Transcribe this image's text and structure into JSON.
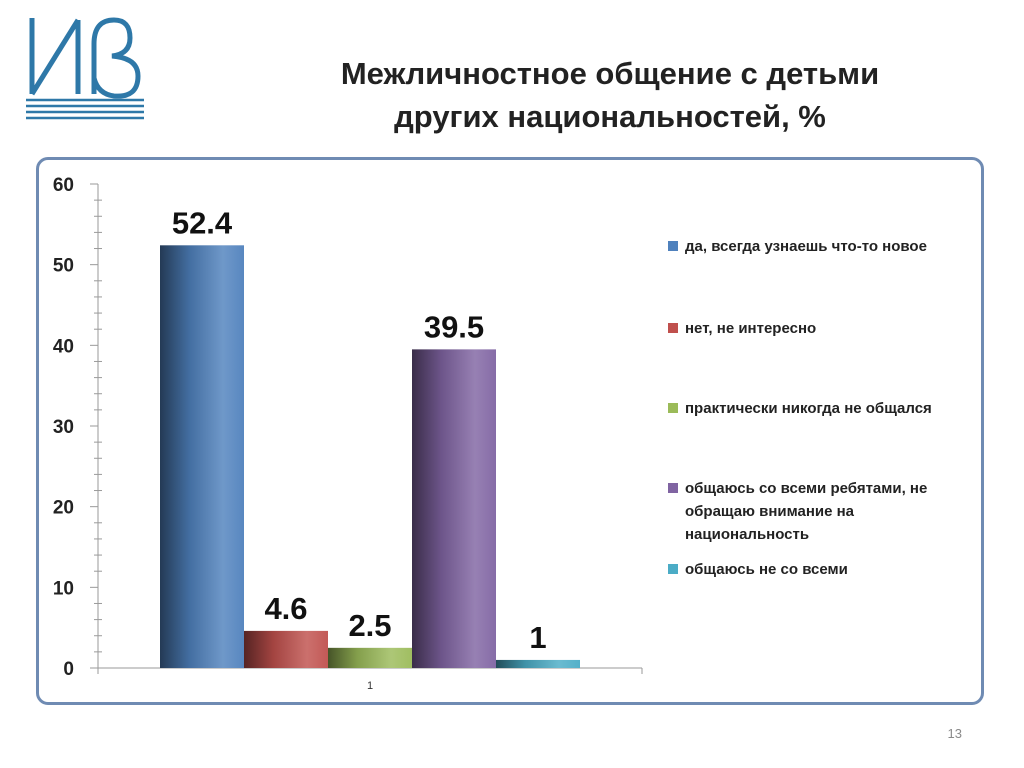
{
  "slide": {
    "title_lines": [
      "Межличностное общение с детьми",
      "других национальностей, %"
    ],
    "page_number": "13",
    "brand_color": "#2e78a8"
  },
  "chart_data": {
    "type": "bar",
    "categories": [
      "1"
    ],
    "ylim": [
      0,
      60
    ],
    "yticks": [
      0,
      10,
      20,
      30,
      40,
      50,
      60
    ],
    "grid": false,
    "legend_position": "right",
    "series": [
      {
        "name": "да, всегда узнаешь что-то новое",
        "values": [
          52.4
        ],
        "label": "52.4",
        "color": "#4f81bd"
      },
      {
        "name": "нет, не интересно",
        "values": [
          4.6
        ],
        "label": "4.6",
        "color": "#c0504d"
      },
      {
        "name": "практически никогда не общался",
        "values": [
          2.5
        ],
        "label": "2.5",
        "color": "#9bbb59"
      },
      {
        "name": "общаюсь со всеми ребятами, не обращаю внимание на национальность",
        "values": [
          39.5
        ],
        "label": "39.5",
        "color": "#8064a2"
      },
      {
        "name": "общаюсь не со всеми",
        "values": [
          1
        ],
        "label": "1",
        "color": "#4bacc6"
      }
    ]
  }
}
